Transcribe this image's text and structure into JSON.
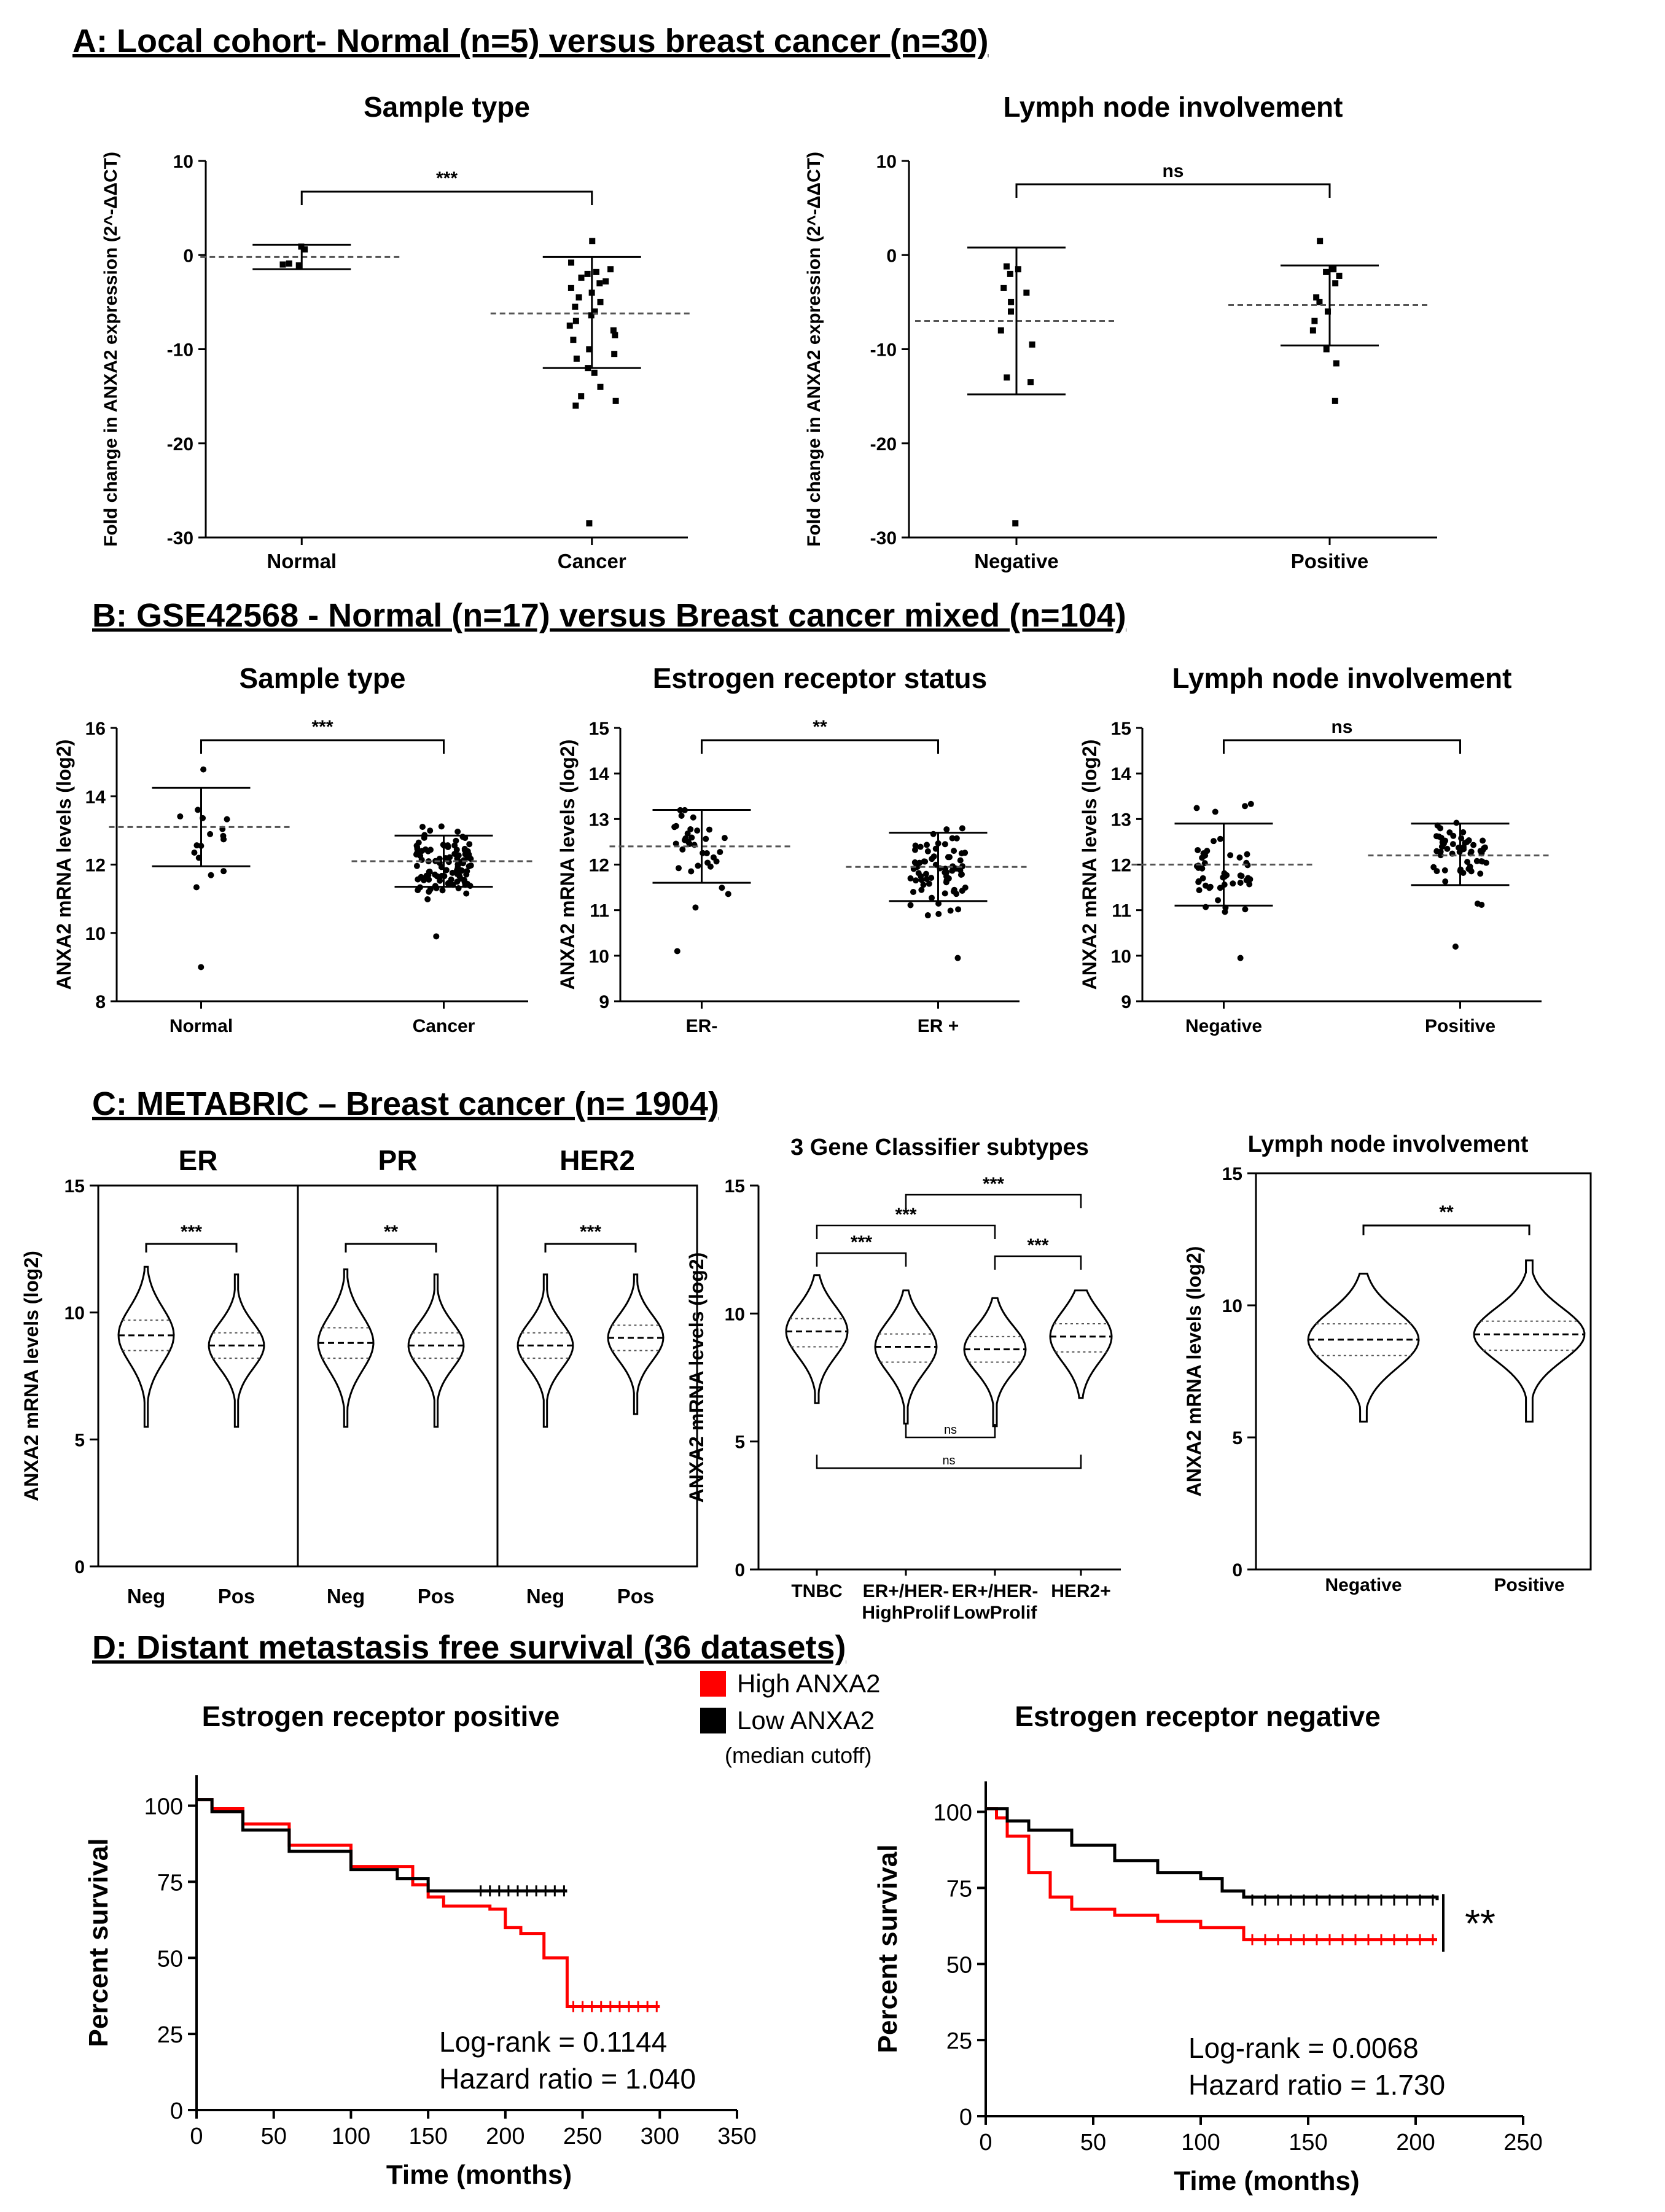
{
  "panels": {
    "A": {
      "header": "A: Local cohort- Normal (n=5) versus breast cancer (n=30)",
      "charts": [
        {
          "title": "Sample type",
          "ylabel": "Fold change in ANXA2 expression (2^-ΔΔCT)",
          "ylim": [
            -30,
            10
          ],
          "ticks": [
            10,
            0,
            -10,
            -20,
            -30
          ],
          "groups": [
            {
              "name": "Normal",
              "mean": -0.2,
              "sd_low": -1.5,
              "sd_high": 1.1,
              "points": [
                0.9,
                0.6,
                -1.0,
                -0.9,
                -1.1
              ]
            },
            {
              "name": "Cancer",
              "mean": -6.2,
              "sd_low": -12.0,
              "sd_high": -0.2,
              "points": [
                1.5,
                -0.8,
                -1.5,
                -1.8,
                -2.0,
                -2.4,
                -2.8,
                -3.0,
                -3.5,
                -4.0,
                -4.5,
                -5.0,
                -5.5,
                -6.0,
                -6.4,
                -7.0,
                -7.5,
                -8.0,
                -8.5,
                -9.0,
                -10.0,
                -10.5,
                -11.0,
                -12.0,
                -12.5,
                -14.0,
                -15.0,
                -16.0,
                -15.5,
                -28.5
              ]
            }
          ],
          "comparison": {
            "from": 0,
            "to": 1,
            "label": "***"
          }
        },
        {
          "title": "Lymph node involvement",
          "ylabel": "Fold change in ANXA2 expression (2^-ΔΔCT)",
          "ylim": [
            -30,
            10
          ],
          "ticks": [
            10,
            0,
            -10,
            -20,
            -30
          ],
          "groups": [
            {
              "name": "Negative",
              "mean": -7.0,
              "sd_low": -14.8,
              "sd_high": 0.8,
              "points": [
                -1.2,
                -1.5,
                -2.0,
                -3.5,
                -4.0,
                -5.0,
                -6.0,
                -8.0,
                -9.5,
                -13.0,
                -13.5,
                -28.5
              ]
            },
            {
              "name": "Positive",
              "mean": -5.3,
              "sd_low": -9.6,
              "sd_high": -1.1,
              "points": [
                1.5,
                -1.5,
                -1.8,
                -2.2,
                -3.0,
                -4.5,
                -5.0,
                -6.0,
                -7.0,
                -8.0,
                -10.0,
                -11.5,
                -15.5
              ]
            }
          ],
          "comparison": {
            "from": 0,
            "to": 1,
            "label": "ns"
          }
        }
      ]
    },
    "B": {
      "header": "B: GSE42568 - Normal (n=17) versus Breast cancer mixed (n=104)",
      "charts": [
        {
          "title": "Sample type",
          "ylabel": "ANXA2 mRNA levels (log2)",
          "ylim": [
            8,
            16
          ],
          "ticks": [
            16,
            14,
            12,
            10,
            8
          ],
          "groups": [
            {
              "name": "Normal",
              "mean": 13.1,
              "sd_low": 11.95,
              "sd_high": 14.25,
              "n": 17,
              "spread": 1.2,
              "outlier": 9.0
            },
            {
              "name": "Cancer",
              "mean": 12.1,
              "sd_low": 11.35,
              "sd_high": 12.85,
              "n": 104,
              "spread": 0.75,
              "outlier": 9.9
            }
          ],
          "comparison": {
            "from": 0,
            "to": 1,
            "label": "***"
          }
        },
        {
          "title": "Estrogen receptor status",
          "ylabel": "ANXA2 mRNA levels (log2)",
          "ylim": [
            9,
            15
          ],
          "ticks": [
            15,
            14,
            13,
            12,
            11,
            10,
            9
          ],
          "groups": [
            {
              "name": "ER-",
              "mean": 12.4,
              "sd_low": 11.6,
              "sd_high": 13.2,
              "n": 34,
              "spread": 0.8,
              "outlier": 10.1
            },
            {
              "name": "ER +",
              "mean": 11.95,
              "sd_low": 11.2,
              "sd_high": 12.7,
              "n": 70,
              "spread": 0.75,
              "outlier": 9.95
            }
          ],
          "comparison": {
            "from": 0,
            "to": 1,
            "label": "**"
          }
        },
        {
          "title": "Lymph node involvement",
          "ylabel": "ANXA2 mRNA levels (log2)",
          "ylim": [
            9,
            15
          ],
          "ticks": [
            15,
            14,
            13,
            12,
            11,
            10,
            9
          ],
          "groups": [
            {
              "name": "Negative",
              "mean": 12.0,
              "sd_low": 11.1,
              "sd_high": 12.9,
              "n": 48,
              "spread": 0.9,
              "outlier": 9.95
            },
            {
              "name": "Positive",
              "mean": 12.2,
              "sd_low": 11.55,
              "sd_high": 12.9,
              "n": 56,
              "spread": 0.7,
              "outlier": 10.2
            }
          ],
          "comparison": {
            "from": 0,
            "to": 1,
            "label": "ns"
          }
        }
      ]
    },
    "C": {
      "header": "C: METABRIC – Breast cancer (n= 1904)",
      "receptor": {
        "ylabel": "ANXA2 mRNA levels (log2)",
        "ylim": [
          0,
          15
        ],
        "ticks": [
          15,
          10,
          5,
          0
        ],
        "subpanels": [
          {
            "title": "ER",
            "groups": [
              {
                "name": "Neg",
                "median": 9.1,
                "q1": 8.5,
                "q3": 9.7,
                "min": 5.5,
                "max": 11.8
              },
              {
                "name": "Pos",
                "median": 8.7,
                "q1": 8.2,
                "q3": 9.2,
                "min": 5.5,
                "max": 11.5
              }
            ],
            "sig": "***"
          },
          {
            "title": "PR",
            "groups": [
              {
                "name": "Neg",
                "median": 8.8,
                "q1": 8.2,
                "q3": 9.4,
                "min": 5.5,
                "max": 11.7
              },
              {
                "name": "Pos",
                "median": 8.7,
                "q1": 8.2,
                "q3": 9.2,
                "min": 5.5,
                "max": 11.5
              }
            ],
            "sig": "**"
          },
          {
            "title": "HER2",
            "groups": [
              {
                "name": "Neg",
                "median": 8.7,
                "q1": 8.2,
                "q3": 9.2,
                "min": 5.5,
                "max": 11.5
              },
              {
                "name": "Pos",
                "median": 9.0,
                "q1": 8.5,
                "q3": 9.5,
                "min": 6.0,
                "max": 11.5
              }
            ],
            "sig": "***"
          }
        ]
      },
      "classifier": {
        "title": "3 Gene Classifier subtypes",
        "ylabel": "ANXA2 mRNA levels (log2)",
        "ylim": [
          0,
          15
        ],
        "ticks": [
          15,
          10,
          5,
          0
        ],
        "groups": [
          {
            "name": "TNBC",
            "name2": "",
            "median": 9.3,
            "q1": 8.7,
            "q3": 9.8,
            "min": 6.5,
            "max": 11.5
          },
          {
            "name": "ER+/HER-",
            "name2": "HighProlif",
            "median": 8.7,
            "q1": 8.1,
            "q3": 9.2,
            "min": 5.7,
            "max": 10.9
          },
          {
            "name": "ER+/HER-",
            "name2": "LowProlif",
            "median": 8.6,
            "q1": 8.1,
            "q3": 9.1,
            "min": 5.6,
            "max": 10.6
          },
          {
            "name": "HER2+",
            "name2": "",
            "median": 9.1,
            "q1": 8.5,
            "q3": 9.6,
            "min": 6.7,
            "max": 10.9
          }
        ],
        "comparisons": [
          {
            "from": 0,
            "to": 1,
            "label": "***"
          },
          {
            "from": 0,
            "to": 2,
            "label": "***"
          },
          {
            "from": 1,
            "to": 3,
            "label": "***"
          },
          {
            "from": 2,
            "to": 3,
            "label": "***"
          },
          {
            "from": 1,
            "to": 2,
            "label": "ns"
          },
          {
            "from": 0,
            "to": 3,
            "label": "ns"
          }
        ]
      },
      "lymph": {
        "title": "Lymph node involvement",
        "ylabel": "ANXA2 mRNA levels (log2)",
        "ylim": [
          0,
          15
        ],
        "ticks": [
          15,
          10,
          5,
          0
        ],
        "groups": [
          {
            "name": "Negative",
            "median": 8.7,
            "q1": 8.1,
            "q3": 9.3,
            "min": 5.6,
            "max": 11.2
          },
          {
            "name": "Positive",
            "median": 8.9,
            "q1": 8.3,
            "q3": 9.4,
            "min": 5.6,
            "max": 11.7
          }
        ],
        "sig": "**"
      }
    },
    "D": {
      "header": "D: Distant metastasis free survival (36 datasets)",
      "legend": {
        "high": "High ANXA2",
        "low": "Low ANXA2",
        "note": "(median cutoff)",
        "high_color": "#ff0000",
        "low_color": "#000000"
      },
      "charts": [
        {
          "title": "Estrogen receptor positive",
          "ylabel": "Percent survival",
          "xlabel": "Time (months)",
          "xlim": [
            0,
            350
          ],
          "ylim": [
            0,
            110
          ],
          "xticks": [
            0,
            50,
            100,
            150,
            200,
            250,
            300,
            350
          ],
          "yticks": [
            0,
            25,
            50,
            75,
            100
          ],
          "high": [
            [
              0,
              102
            ],
            [
              10,
              99
            ],
            [
              30,
              94
            ],
            [
              60,
              87
            ],
            [
              100,
              80
            ],
            [
              140,
              74
            ],
            [
              150,
              70
            ],
            [
              160,
              67
            ],
            [
              190,
              66
            ],
            [
              200,
              60
            ],
            [
              210,
              58
            ],
            [
              225,
              50
            ],
            [
              235,
              50
            ],
            [
              240,
              34
            ],
            [
              300,
              34
            ]
          ],
          "low": [
            [
              0,
              102
            ],
            [
              10,
              98
            ],
            [
              30,
              92
            ],
            [
              60,
              85
            ],
            [
              100,
              79
            ],
            [
              130,
              76
            ],
            [
              150,
              72
            ],
            [
              180,
              72
            ],
            [
              240,
              72
            ]
          ],
          "logrank": "Log-rank = 0.1144",
          "hr": "Hazard ratio = 1.040",
          "sig": ""
        },
        {
          "title": "Estrogen receptor negative",
          "ylabel": "Percent survival",
          "xlabel": "Time (months)",
          "xlim": [
            0,
            250
          ],
          "ylim": [
            0,
            110
          ],
          "xticks": [
            0,
            50,
            100,
            150,
            200,
            250
          ],
          "yticks": [
            0,
            25,
            50,
            75,
            100
          ],
          "high": [
            [
              0,
              101
            ],
            [
              5,
              98
            ],
            [
              10,
              92
            ],
            [
              20,
              80
            ],
            [
              30,
              72
            ],
            [
              40,
              68
            ],
            [
              60,
              66
            ],
            [
              80,
              64
            ],
            [
              100,
              62
            ],
            [
              120,
              58
            ],
            [
              210,
              58
            ]
          ],
          "low": [
            [
              0,
              101
            ],
            [
              10,
              97
            ],
            [
              20,
              94
            ],
            [
              40,
              89
            ],
            [
              60,
              84
            ],
            [
              80,
              80
            ],
            [
              100,
              78
            ],
            [
              110,
              74
            ],
            [
              120,
              72
            ],
            [
              210,
              71
            ]
          ],
          "logrank": "Log-rank = 0.0068",
          "hr": "Hazard ratio = 1.730",
          "sig": "**"
        }
      ]
    }
  },
  "chart_data": [
    {
      "type": "scatter",
      "title": "Sample type",
      "ylabel": "Fold change in ANXA2 expression (2^-ΔΔCT)",
      "categories": [
        "Normal",
        "Cancer"
      ],
      "means": [
        -0.2,
        -6.2
      ],
      "ylim": [
        -30,
        10
      ]
    },
    {
      "type": "scatter",
      "title": "Lymph node involvement",
      "ylabel": "Fold change in ANXA2 expression (2^-ΔΔCT)",
      "categories": [
        "Negative",
        "Positive"
      ],
      "means": [
        -7.0,
        -5.3
      ],
      "ylim": [
        -30,
        10
      ]
    },
    {
      "type": "scatter",
      "title": "Sample type",
      "ylabel": "ANXA2 mRNA levels (log2)",
      "categories": [
        "Normal",
        "Cancer"
      ],
      "means": [
        13.1,
        12.1
      ],
      "ylim": [
        8,
        16
      ]
    },
    {
      "type": "scatter",
      "title": "Estrogen receptor status",
      "ylabel": "ANXA2 mRNA levels (log2)",
      "categories": [
        "ER-",
        "ER +"
      ],
      "means": [
        12.4,
        11.95
      ],
      "ylim": [
        9,
        15
      ]
    },
    {
      "type": "scatter",
      "title": "Lymph node involvement",
      "ylabel": "ANXA2 mRNA levels (log2)",
      "categories": [
        "Negative",
        "Positive"
      ],
      "means": [
        12.0,
        12.2
      ],
      "ylim": [
        9,
        15
      ]
    },
    {
      "type": "violin",
      "title": "ER / PR / HER2",
      "ylabel": "ANXA2 mRNA levels (log2)",
      "categories": [
        "Neg",
        "Pos"
      ],
      "medians": {
        "ER": [
          9.1,
          8.7
        ],
        "PR": [
          8.8,
          8.7
        ],
        "HER2": [
          8.7,
          9.0
        ]
      },
      "ylim": [
        0,
        15
      ]
    },
    {
      "type": "violin",
      "title": "3 Gene Classifier subtypes",
      "categories": [
        "TNBC",
        "ER+/HER- HighProlif",
        "ER+/HER- LowProlif",
        "HER2+"
      ],
      "medians": [
        9.3,
        8.7,
        8.6,
        9.1
      ],
      "ylim": [
        0,
        15
      ]
    },
    {
      "type": "violin",
      "title": "Lymph node involvement",
      "categories": [
        "Negative",
        "Positive"
      ],
      "medians": [
        8.7,
        8.9
      ],
      "ylim": [
        0,
        15
      ]
    },
    {
      "type": "line",
      "title": "Estrogen receptor positive",
      "xlabel": "Time (months)",
      "ylabel": "Percent survival",
      "series": [
        "High ANXA2",
        "Low ANXA2"
      ],
      "logrank": 0.1144,
      "hazard_ratio": 1.04
    },
    {
      "type": "line",
      "title": "Estrogen receptor negative",
      "xlabel": "Time (months)",
      "ylabel": "Percent survival",
      "series": [
        "High ANXA2",
        "Low ANXA2"
      ],
      "logrank": 0.0068,
      "hazard_ratio": 1.73
    }
  ]
}
